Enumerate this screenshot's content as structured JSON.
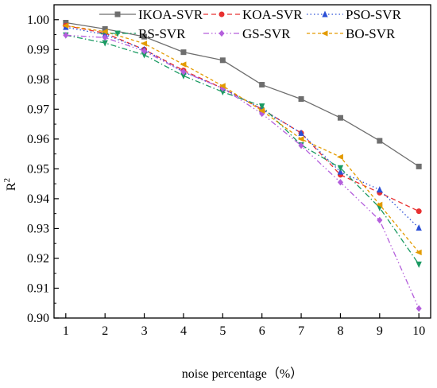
{
  "chart_data": {
    "type": "line",
    "xlabel": "noise percentage（%）",
    "ylabel_main": "R",
    "ylabel_sup": "2",
    "x": [
      1,
      2,
      3,
      4,
      5,
      6,
      7,
      8,
      9,
      10
    ],
    "xlim": [
      0.7,
      10.3
    ],
    "ylim": [
      0.9,
      1.005
    ],
    "yticks": [
      "0.90",
      "0.91",
      "0.92",
      "0.93",
      "0.94",
      "0.95",
      "0.96",
      "0.97",
      "0.98",
      "0.99",
      "1.00"
    ],
    "legend_placement": "top",
    "series": [
      {
        "name": "IKOA-SVR",
        "color": "#6e6e6e",
        "dash": "solid",
        "marker": "square",
        "values": [
          0.999,
          0.9969,
          0.9943,
          0.9891,
          0.9864,
          0.9782,
          0.9734,
          0.9671,
          0.9594,
          0.9508
        ]
      },
      {
        "name": "KOA-SVR",
        "color": "#e83030",
        "dash": "dash",
        "marker": "circle",
        "values": [
          0.998,
          0.9955,
          0.99,
          0.983,
          0.977,
          0.97,
          0.962,
          0.948,
          0.942,
          0.9358
        ]
      },
      {
        "name": "PSO-SVR",
        "color": "#2b4fd6",
        "dash": "dot",
        "marker": "triangle-up",
        "values": [
          0.9975,
          0.995,
          0.99,
          0.9825,
          0.977,
          0.97,
          0.962,
          0.949,
          0.943,
          0.9302
        ]
      },
      {
        "name": "RS-SVR",
        "color": "#1a9a62",
        "dash": "dashdot",
        "marker": "triangle-down",
        "values": [
          0.9948,
          0.9922,
          0.9882,
          0.9812,
          0.9758,
          0.971,
          0.958,
          0.9503,
          0.937,
          0.918
        ]
      },
      {
        "name": "GS-SVR",
        "color": "#b45fdc",
        "dash": "dashdotdot",
        "marker": "diamond",
        "values": [
          0.9948,
          0.994,
          0.9895,
          0.9825,
          0.977,
          0.9685,
          0.9578,
          0.9455,
          0.9328,
          0.9032
        ]
      },
      {
        "name": "BO-SVR",
        "color": "#e39b00",
        "dash": "shortdash",
        "marker": "triangle-left",
        "values": [
          0.998,
          0.996,
          0.992,
          0.985,
          0.9778,
          0.9695,
          0.96,
          0.954,
          0.938,
          0.922
        ]
      }
    ]
  }
}
